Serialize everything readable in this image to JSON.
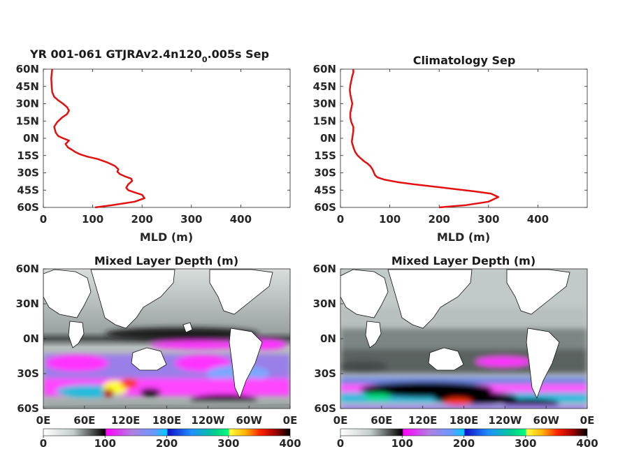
{
  "chart_data": [
    {
      "type": "line",
      "title": "YR 001-061 GTJRAv2.4n120",
      "title_subscript": "0",
      "title_suffix": ".005s Sep",
      "xlabel": "MLD (m)",
      "ylabel": "",
      "xlim": [
        0,
        500
      ],
      "ylim": [
        -60,
        60
      ],
      "xticks": [
        "0",
        "100",
        "200",
        "300",
        "400"
      ],
      "yticks": [
        "60N",
        "45N",
        "30N",
        "15N",
        "0N",
        "15S",
        "30S",
        "45S",
        "60S"
      ],
      "color": "#e41010",
      "series": [
        {
          "x": [
            105,
            140,
            185,
            205,
            200,
            185,
            172,
            168,
            172,
            180,
            178,
            165,
            155,
            150,
            152,
            145,
            130,
            110,
            90,
            75,
            65,
            58,
            50,
            45,
            52,
            40,
            30,
            25,
            22,
            28,
            38,
            48,
            52,
            48,
            40,
            30,
            22,
            18,
            17,
            16,
            18
          ],
          "y": [
            -60,
            -58,
            -55,
            -52,
            -49,
            -47,
            -45,
            -43,
            -40,
            -37,
            -35,
            -33,
            -31,
            -29,
            -27,
            -24,
            -21,
            -18,
            -16,
            -14,
            -12,
            -10,
            -8,
            -5,
            -2,
            0,
            2,
            5,
            10,
            14,
            18,
            21,
            24,
            27,
            30,
            33,
            36,
            40,
            45,
            52,
            60
          ]
        }
      ]
    },
    {
      "type": "line",
      "title": "Climatology Sep",
      "xlabel": "MLD (m)",
      "ylabel": "",
      "xlim": [
        0,
        500
      ],
      "ylim": [
        -60,
        60
      ],
      "xticks": [
        "0",
        "100",
        "200",
        "300",
        "400"
      ],
      "yticks": [
        "60N",
        "45N",
        "30N",
        "15N",
        "0N",
        "15S",
        "30S",
        "45S",
        "60S"
      ],
      "color": "#e41010",
      "series": [
        {
          "x": [
            200,
            255,
            300,
            320,
            305,
            270,
            230,
            190,
            150,
            115,
            90,
            75,
            70,
            68,
            65,
            60,
            55,
            48,
            40,
            35,
            30,
            27,
            25,
            23,
            24,
            25,
            26,
            26,
            22,
            20,
            20,
            22,
            24,
            22,
            20,
            19,
            20,
            22,
            24,
            26,
            26
          ],
          "y": [
            -60,
            -58,
            -55,
            -51,
            -48,
            -46,
            -44,
            -42,
            -40,
            -38,
            -36,
            -34,
            -32,
            -30,
            -27,
            -24,
            -22,
            -20,
            -17,
            -15,
            -12,
            -9,
            -6,
            -3,
            0,
            3,
            6,
            10,
            14,
            18,
            22,
            26,
            30,
            34,
            38,
            42,
            46,
            50,
            54,
            57,
            60
          ]
        }
      ]
    },
    {
      "type": "heatmap",
      "title": "Mixed Layer Depth (m)",
      "xticks": [
        "0E",
        "60E",
        "120E",
        "180E",
        "120W",
        "60W",
        "0E"
      ],
      "yticks": [
        "60N",
        "30N",
        "0N",
        "30S",
        "60S"
      ],
      "colorbar": {
        "range": [
          0,
          400
        ],
        "ticks": [
          "0",
          "100",
          "200",
          "300",
          "400"
        ]
      }
    },
    {
      "type": "heatmap",
      "title": "Mixed Layer Depth (m)",
      "xticks": [
        "0E",
        "60E",
        "120E",
        "180E",
        "120W",
        "60W",
        "0E"
      ],
      "yticks": [
        "60N",
        "30N",
        "0N",
        "30S",
        "60S"
      ],
      "colorbar": {
        "range": [
          0,
          400
        ],
        "ticks": [
          "0",
          "100",
          "200",
          "300",
          "400"
        ]
      }
    }
  ]
}
